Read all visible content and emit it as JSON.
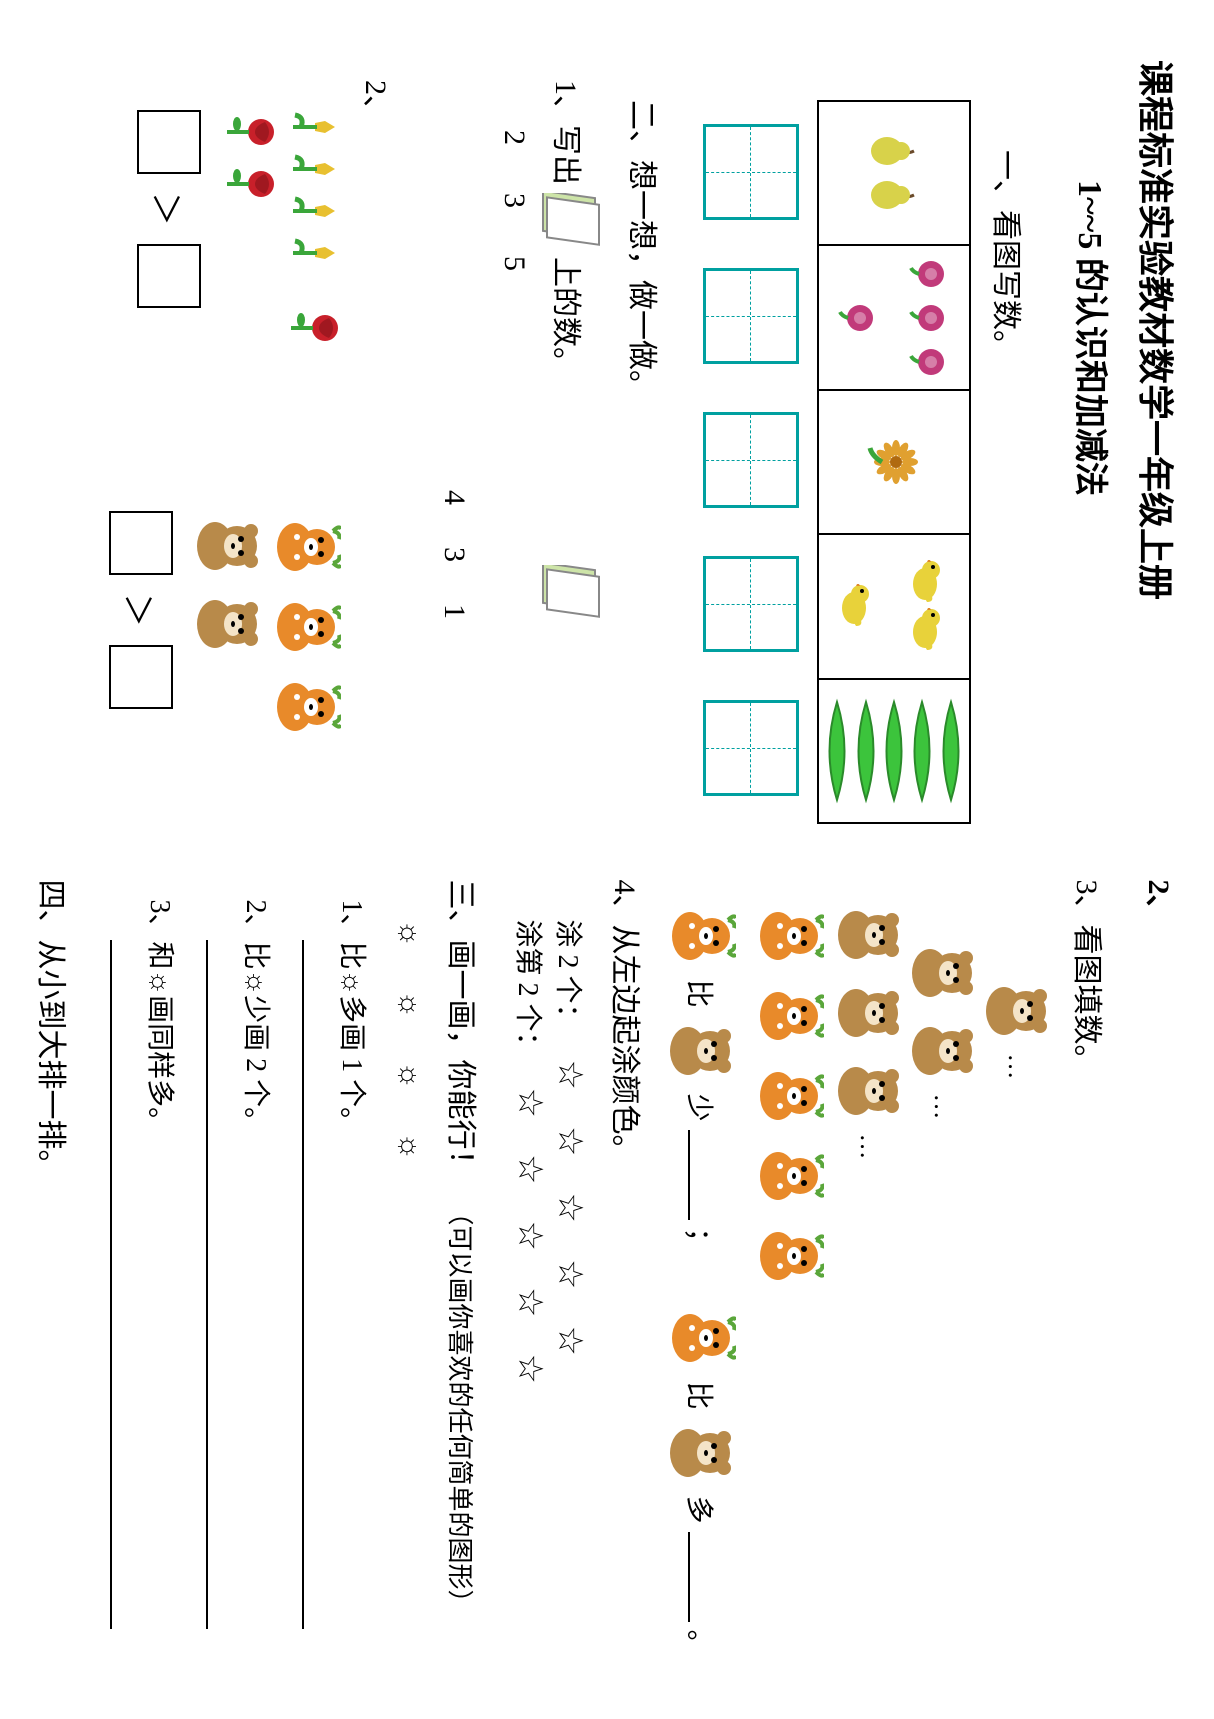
{
  "title": "课程标准实验教材数学一年级上册",
  "subtitle": "1~~5 的认识和加减法",
  "left": {
    "sec1": "一、看图写数。",
    "cells": [
      {
        "kind": "pear",
        "count": 2,
        "color": "#d8d24a"
      },
      {
        "kind": "rose",
        "count": 4,
        "color": "#c13a7a"
      },
      {
        "kind": "flower",
        "count": 1,
        "color": "#e0a030"
      },
      {
        "kind": "chick",
        "count": 3,
        "color": "#e8d23a"
      },
      {
        "kind": "cucumber",
        "count": 5,
        "color": "#3cc43c"
      }
    ],
    "sec2": "二、想一想，做一做。",
    "q1_prefix": "1、写出",
    "q1_mid": "上的数。",
    "nums_a": [
      "2",
      "3",
      "5"
    ],
    "nums_b": [
      "4",
      "3",
      "1"
    ],
    "q2": "2、",
    "compare_a": {
      "left_kind": "tulip",
      "left_count": 4,
      "left_color": "#e8c030",
      "right_kind": "rose2",
      "right_count": 3,
      "right_color": "#c8202a"
    },
    "compare_b": {
      "left_kind": "deer",
      "left_count": 3,
      "right_kind": "bear",
      "right_count": 2
    },
    "gt": "＞"
  },
  "right": {
    "two": "2、",
    "sec3": "3、看图填数。",
    "fill_line": {
      "a": "比",
      "b": "少",
      "c": "；",
      "d": "比",
      "e": "多",
      "f": "。"
    },
    "sec4": "4、从左边起涂颜色。",
    "q4a_pre": "涂 2 个：",
    "q4b_pre": "涂第 2 个：",
    "stars5": [
      "☆",
      "☆",
      "☆",
      "☆",
      "☆"
    ],
    "sec5": "三、画一画，你能行！",
    "sec5_hint": "（可以画你喜欢的任何简单的图形）",
    "suns": "☼   ☼   ☼   ☼",
    "q5_1": "1、比☼多画 1 个。",
    "q5_2": "2、比☼少画 2 个。",
    "q5_3": "3、和☼画同样多。",
    "sec6": "四、从小到大排一排。"
  },
  "colors": {
    "bear_body": "#b88a4a",
    "bear_face": "#f4e4c8",
    "deer_body": "#e88a2a",
    "deer_antler": "#5aa63a",
    "leaf": "#3aa63a",
    "card": "#cde4a8",
    "box_border": "#00a0a0"
  }
}
